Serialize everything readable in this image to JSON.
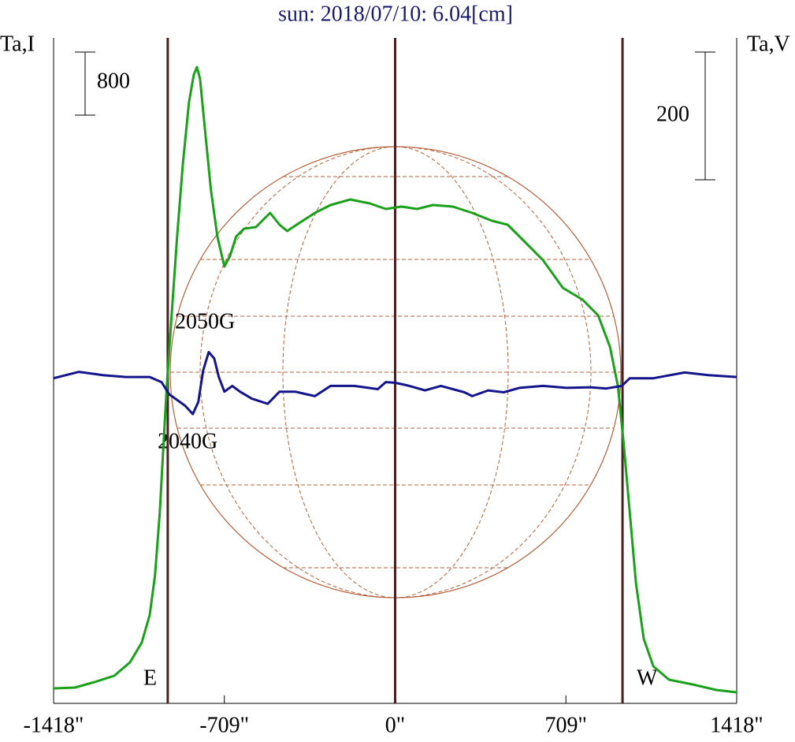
{
  "chart_data": {
    "type": "line",
    "title": "sun: 2018/07/10: 6.04[cm]",
    "ylabel": "Ta,I",
    "y2label": "Ta,V",
    "xlim": [
      -1418,
      1418
    ],
    "xticks": [
      {
        "value": -1418,
        "label": "-1418\""
      },
      {
        "value": -709,
        "label": "-709\""
      },
      {
        "value": 0,
        "label": "0\""
      },
      {
        "value": 709,
        "label": "709\""
      },
      {
        "value": 1418,
        "label": "1418\""
      }
    ],
    "ylim": [
      0,
      8440
    ],
    "y2lim": [
      -509,
      533
    ],
    "scale_bars": [
      {
        "axis": "y",
        "value": 800
      },
      {
        "axis": "y2",
        "value": 200
      }
    ],
    "vlines": [
      -944,
      0,
      944
    ],
    "annotations": [
      "2050G",
      "2040G",
      "E",
      "W"
    ],
    "series": [
      {
        "name": "I",
        "color": "#1aa01a",
        "x": [
          -1418,
          -1330,
          -1248,
          -1166,
          -1101,
          -1052,
          -1019,
          -997,
          -977,
          -961,
          -948,
          -928,
          -905,
          -882,
          -856,
          -836,
          -823,
          -810,
          -791,
          -765,
          -738,
          -709,
          -686,
          -660,
          -627,
          -578,
          -519,
          -480,
          -448,
          -399,
          -333,
          -268,
          -186,
          -105,
          -39,
          26,
          91,
          157,
          239,
          320,
          402,
          467,
          533,
          614,
          696,
          778,
          843,
          892,
          925,
          948,
          974,
          1000,
          1032,
          1072,
          1137,
          1235,
          1333,
          1418
        ],
        "values": [
          190,
          200,
          270,
          350,
          520,
          770,
          1120,
          1620,
          2420,
          3320,
          4020,
          4920,
          5920,
          6820,
          7620,
          7970,
          8070,
          7920,
          7320,
          6520,
          5920,
          5540,
          5670,
          5920,
          6020,
          6040,
          6220,
          6070,
          5990,
          6090,
          6220,
          6320,
          6390,
          6340,
          6270,
          6300,
          6270,
          6320,
          6300,
          6220,
          6120,
          6070,
          5870,
          5620,
          5270,
          5120,
          4920,
          4520,
          4020,
          3320,
          2420,
          1520,
          820,
          470,
          300,
          240,
          170,
          140
        ]
      },
      {
        "name": "V",
        "color": "#14148c",
        "axis": "y2",
        "x": [
          -1418,
          -1313,
          -1215,
          -1117,
          -1019,
          -970,
          -938,
          -872,
          -840,
          -817,
          -797,
          -774,
          -751,
          -732,
          -709,
          -676,
          -644,
          -595,
          -529,
          -480,
          -415,
          -333,
          -268,
          -170,
          -72,
          -39,
          0,
          59,
          124,
          190,
          288,
          320,
          386,
          451,
          516,
          614,
          712,
          810,
          876,
          941,
          974,
          1072,
          1202,
          1300,
          1418
        ],
        "values": [
          0,
          10,
          5,
          2,
          2,
          -6,
          -25,
          -43,
          -56,
          -37,
          12,
          41,
          31,
          2,
          -21,
          -12,
          -21,
          -32,
          -40,
          -21,
          -21,
          -28,
          -12,
          -12,
          -17,
          -6,
          -7,
          -12,
          -19,
          -12,
          -22,
          -28,
          -19,
          -22,
          -15,
          -12,
          -15,
          -14,
          -16,
          -12,
          0,
          0,
          9,
          5,
          2
        ]
      }
    ]
  }
}
